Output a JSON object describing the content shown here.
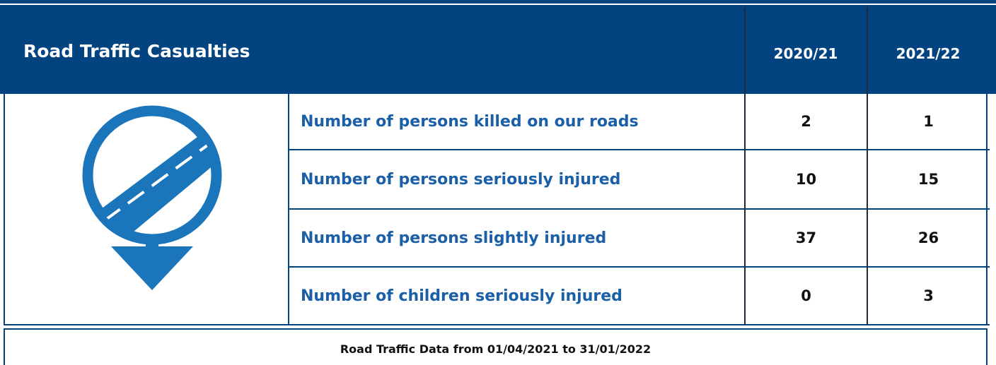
{
  "header": {
    "title": "Road Traffic Casualties",
    "columns": [
      "2020/21",
      "2021/22"
    ]
  },
  "rows": [
    {
      "label": "Number of persons killed on our roads",
      "values": [
        2,
        1
      ]
    },
    {
      "label": "Number of persons seriously injured",
      "values": [
        10,
        15
      ]
    },
    {
      "label": "Number of persons slightly injured",
      "values": [
        37,
        26
      ]
    },
    {
      "label": "Number of children seriously injured",
      "values": [
        0,
        3
      ]
    }
  ],
  "footer": "Road Traffic Data from 01/04/2021 to 31/01/2022"
}
